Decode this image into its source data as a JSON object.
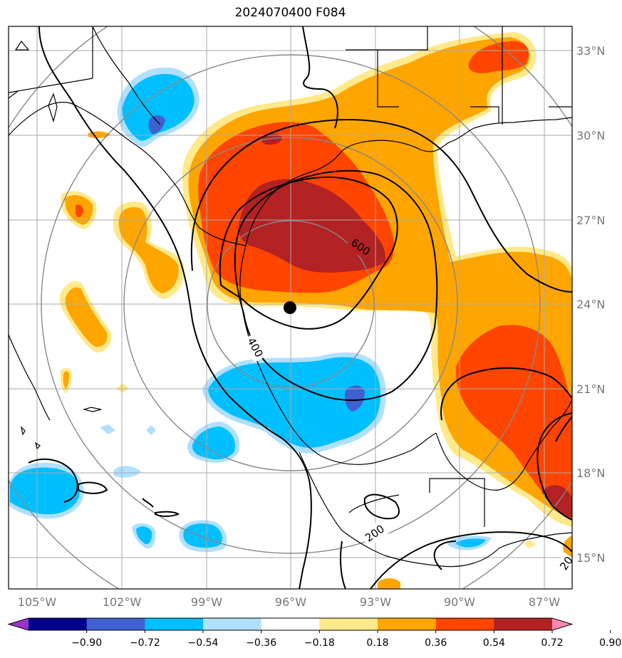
{
  "title": "2024070400 F084",
  "lon_labels": [
    "105°W",
    "102°W",
    "99°W",
    "96°W",
    "93°W",
    "90°W",
    "87°W"
  ],
  "lat_labels": [
    "33°N",
    "30°N",
    "27°N",
    "24°N",
    "21°N",
    "18°N",
    "15°N"
  ],
  "contour_labels": [
    "600",
    "400",
    "200",
    "20"
  ],
  "colorbar": {
    "ticks": [
      "−0.90",
      "−0.72",
      "−0.54",
      "−0.36",
      "−0.18",
      "0.18",
      "0.36",
      "0.54",
      "0.72",
      "0.90"
    ],
    "colors": [
      "#9b30d0",
      "#00008b",
      "#4060d0",
      "#00bfff",
      "#b0e0ff",
      "#ffffff",
      "#ffe98a",
      "#ffa500",
      "#ff4500",
      "#b22222",
      "#ff88b0"
    ]
  },
  "center_marker": {
    "lon": -96,
    "lat": 23.8
  },
  "colors": {
    "blue_light": "#b0e0ff",
    "blue": "#00bfff",
    "blue_dark": "#4060d0",
    "yellow": "#ffe98a",
    "orange": "#ffa500",
    "red": "#ff4500",
    "darkred": "#b22222",
    "grid": "#999999",
    "circle": "#888888"
  }
}
